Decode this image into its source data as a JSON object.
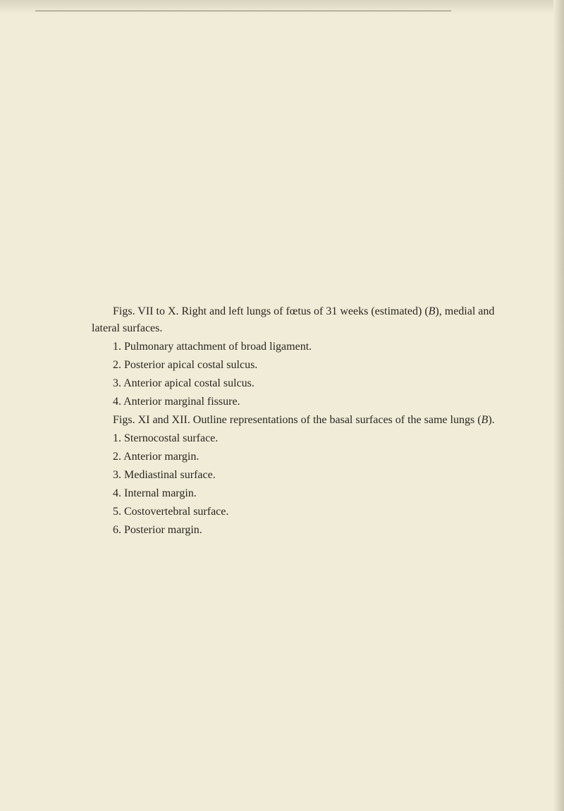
{
  "page": {
    "background_color": "#f0ecd8",
    "text_color": "#2a2620",
    "font_family": "Georgia, Times New Roman, serif",
    "font_size": 16,
    "line_height": 1.5
  },
  "content": {
    "para1_part1": "Figs. VII to X.   Right and left lungs of fœtus of 31 weeks (estimated) (",
    "para1_italic": "B",
    "para1_part2": "), medial and lateral surfaces.",
    "list1": {
      "item1": "1.  Pulmonary attachment of broad ligament.",
      "item2": "2.  Posterior apical costal sulcus.",
      "item3": "3.  Anterior apical costal sulcus.",
      "item4": "4.  Anterior marginal fissure."
    },
    "para2_part1": "Figs. XI and XII.   Outline representations of the basal surfaces of the same lungs (",
    "para2_italic": "B",
    "para2_part2": ").",
    "list2": {
      "item1": "1.  Sternocostal surface.",
      "item2": "2.  Anterior margin.",
      "item3": "3.  Mediastinal surface.",
      "item4": "4.  Internal margin.",
      "item5": "5.  Costovertebral surface.",
      "item6": "6.  Posterior margin."
    }
  }
}
